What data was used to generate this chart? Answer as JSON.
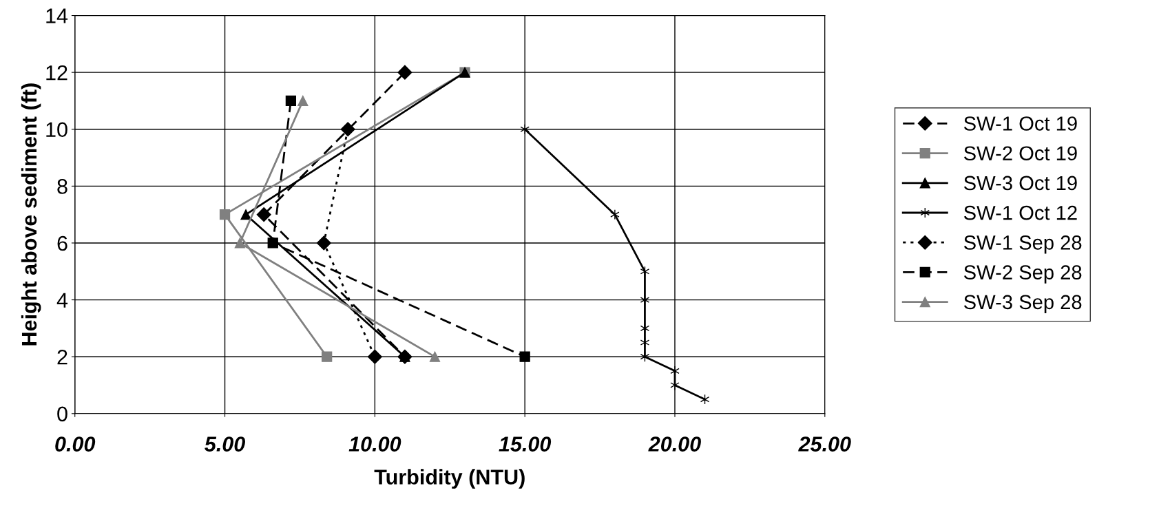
{
  "chart_data": {
    "type": "line",
    "xlabel": "Turbidity (NTU)",
    "ylabel": "Height above sediment (ft)",
    "xlim": [
      0,
      25
    ],
    "ylim": [
      0,
      14
    ],
    "xticks": [
      {
        "value": 0,
        "label": "0.00"
      },
      {
        "value": 5,
        "label": "5.00"
      },
      {
        "value": 10,
        "label": "10.00"
      },
      {
        "value": 15,
        "label": "15.00"
      },
      {
        "value": 20,
        "label": "20.00"
      },
      {
        "value": 25,
        "label": "25.00"
      }
    ],
    "yticks": [
      0,
      2,
      4,
      6,
      8,
      10,
      12,
      14
    ],
    "grid": true,
    "legend": "right",
    "series": [
      {
        "name": "SW-1 Oct 19",
        "color": "#000000",
        "marker": "diamond",
        "line_style": "dashed",
        "x": [
          11,
          6.3,
          11
        ],
        "values": [
          12,
          7,
          2
        ]
      },
      {
        "name": "SW-2 Oct 19",
        "color": "#808080",
        "marker": "square",
        "line_style": "solid",
        "x": [
          13,
          5,
          8.4
        ],
        "values": [
          12,
          7,
          2
        ]
      },
      {
        "name": "SW-3 Oct 19",
        "color": "#000000",
        "marker": "triangle",
        "line_style": "solid",
        "x": [
          13,
          5.7,
          11
        ],
        "values": [
          12,
          7,
          2
        ]
      },
      {
        "name": "SW-1 Oct 12",
        "color": "#000000",
        "marker": "cross",
        "line_style": "solid",
        "x": [
          15,
          18,
          19,
          19,
          19,
          19,
          19,
          20,
          20,
          21
        ],
        "values": [
          10,
          7,
          5,
          4,
          3,
          2.5,
          2,
          1.5,
          1,
          0.5
        ]
      },
      {
        "name": "SW-1 Sep 28",
        "color": "#000000",
        "marker": "diamond",
        "line_style": "dotted",
        "x": [
          9.1,
          8.3,
          10
        ],
        "values": [
          10,
          6,
          2
        ]
      },
      {
        "name": "SW-2 Sep 28",
        "color": "#000000",
        "marker": "square",
        "line_style": "dashed",
        "x": [
          7.2,
          6.6,
          15
        ],
        "values": [
          11,
          6,
          2
        ]
      },
      {
        "name": "SW-3 Sep 28",
        "color": "#808080",
        "marker": "triangle",
        "line_style": "solid",
        "x": [
          7.6,
          5.5,
          12
        ],
        "values": [
          11,
          6,
          2
        ]
      }
    ]
  }
}
